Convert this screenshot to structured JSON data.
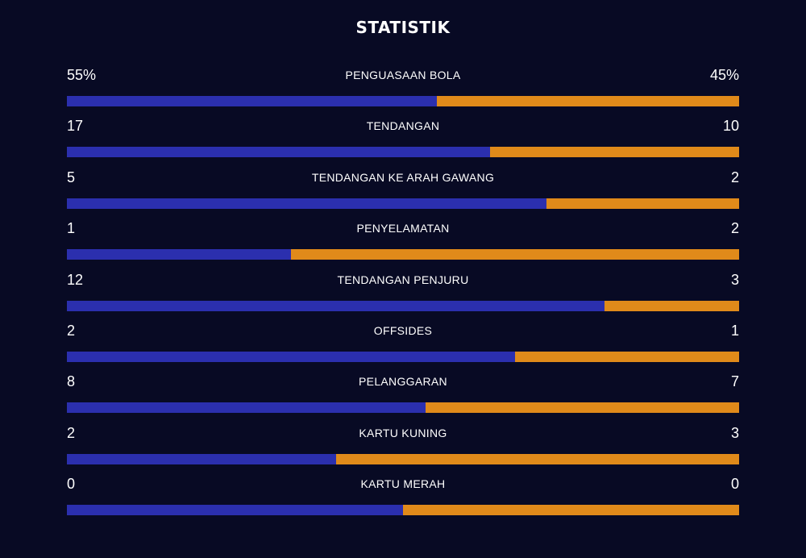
{
  "title": "STATISTIK",
  "colors": {
    "background": "#080a24",
    "home": "#2b2fae",
    "away": "#e08a1a"
  },
  "stats": [
    {
      "label": "PENGUASAAN BOLA",
      "home": "55%",
      "away": "45%",
      "home_share": 0.55
    },
    {
      "label": "TENDANGAN",
      "home": "17",
      "away": "10",
      "home_share": 0.63
    },
    {
      "label": "TENDANGAN KE ARAH GAWANG",
      "home": "5",
      "away": "2",
      "home_share": 0.714
    },
    {
      "label": "PENYELAMATAN",
      "home": "1",
      "away": "2",
      "home_share": 0.333
    },
    {
      "label": "TENDANGAN PENJURU",
      "home": "12",
      "away": "3",
      "home_share": 0.8
    },
    {
      "label": "OFFSIDES",
      "home": "2",
      "away": "1",
      "home_share": 0.667
    },
    {
      "label": "PELANGGARAN",
      "home": "8",
      "away": "7",
      "home_share": 0.533
    },
    {
      "label": "KARTU KUNING",
      "home": "2",
      "away": "3",
      "home_share": 0.4
    },
    {
      "label": "KARTU MERAH",
      "home": "0",
      "away": "0",
      "home_share": 0.5
    }
  ]
}
